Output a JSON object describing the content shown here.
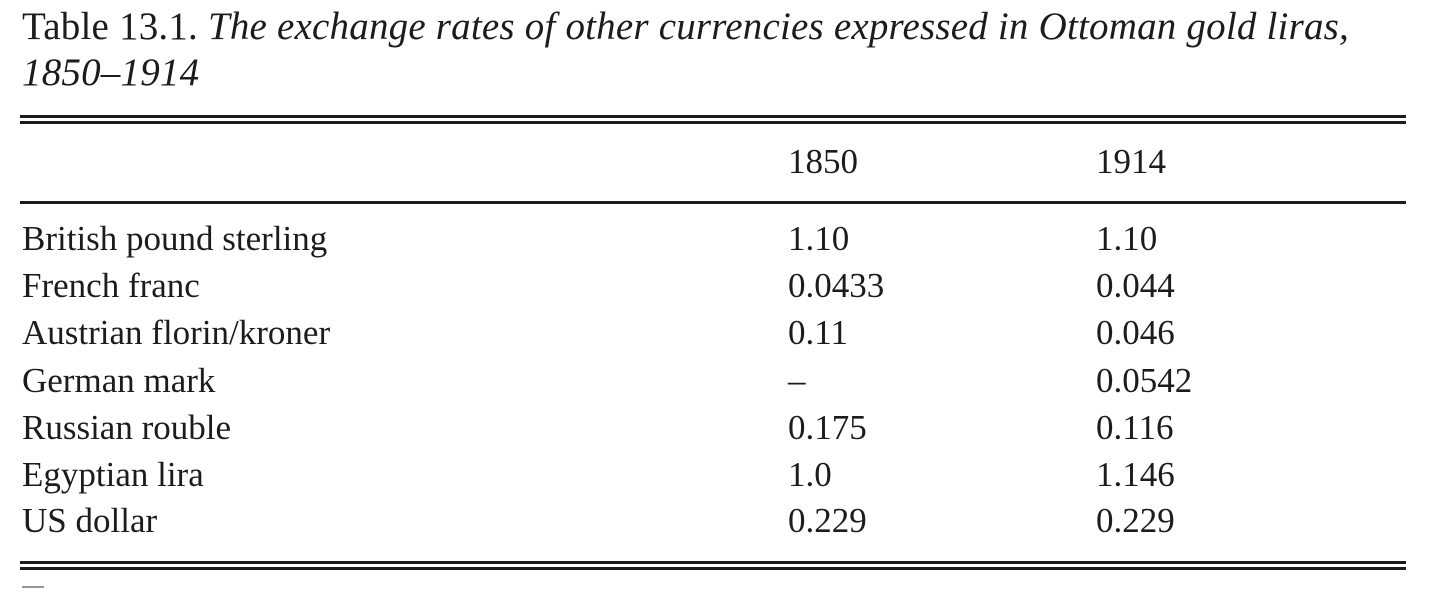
{
  "caption": {
    "label": "Table 13.1.",
    "title": "The exchange rates of other currencies expressed in Ottoman gold liras, 1850–1914"
  },
  "table": {
    "columns": [
      "",
      "1850",
      "1914"
    ],
    "rows": [
      {
        "currency": "British pound sterling",
        "v1850": "1.10",
        "v1914": "1.10"
      },
      {
        "currency": "French franc",
        "v1850": "0.0433",
        "v1914": "0.044"
      },
      {
        "currency": "Austrian florin/kroner",
        "v1850": "0.11",
        "v1914": "0.046"
      },
      {
        "currency": "German mark",
        "v1850": "–",
        "v1914": "0.0542"
      },
      {
        "currency": "Russian rouble",
        "v1850": "0.175",
        "v1914": "0.116"
      },
      {
        "currency": "Egyptian lira",
        "v1850": "1.0",
        "v1914": "1.146"
      },
      {
        "currency": "US dollar",
        "v1850": "0.229",
        "v1914": "0.229"
      }
    ]
  }
}
